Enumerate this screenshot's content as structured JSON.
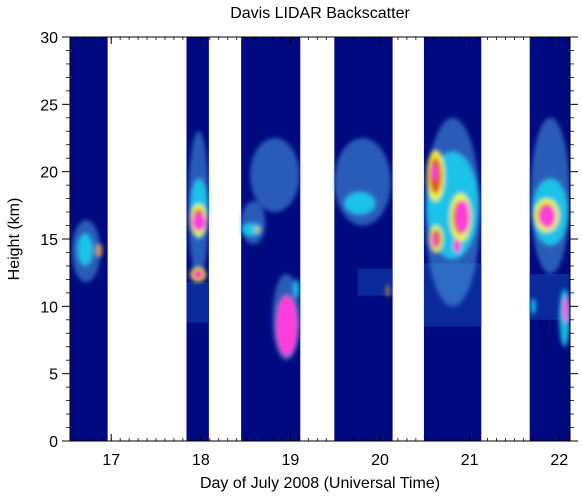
{
  "chart_data": {
    "type": "heatmap",
    "title": "Davis LIDAR Backscatter",
    "xlabel": "Day of July 2008 (Universal Time)",
    "ylabel": "Height (km)",
    "xlim": [
      16.54,
      22.12
    ],
    "ylim": [
      0,
      30
    ],
    "x_ticks": [
      "17",
      "18",
      "19",
      "20",
      "21",
      "22"
    ],
    "x_tick_values": [
      17,
      18,
      19,
      20,
      21,
      22
    ],
    "y_ticks": [
      "0",
      "5",
      "10",
      "15",
      "20",
      "25",
      "30"
    ],
    "y_tick_values": [
      0,
      5,
      10,
      15,
      20,
      25,
      30
    ],
    "grid": false,
    "colors": {
      "background": "#000a80",
      "lower_layer": "#0a2a9c",
      "cyan": "#19d4f0",
      "light_blue": "#4aa0e8",
      "yellow": "#ffff22",
      "red": "#e21a2a",
      "magenta": "#ff3cdc",
      "no_data": "#ffffff"
    },
    "observation_intervals": [
      {
        "start": 16.54,
        "end": 16.96
      },
      {
        "start": 17.84,
        "end": 18.09
      },
      {
        "start": 18.45,
        "end": 19.11
      },
      {
        "start": 19.49,
        "end": 20.14
      },
      {
        "start": 20.49,
        "end": 21.13
      },
      {
        "start": 21.67,
        "end": 22.12
      }
    ],
    "features": [
      {
        "kind": "cloud",
        "level": "light",
        "x": [
          16.56,
          16.88
        ],
        "y": [
          11.8,
          16.4
        ]
      },
      {
        "kind": "cloud",
        "level": "medium",
        "x": [
          16.62,
          16.8
        ],
        "y": [
          13.0,
          15.4
        ]
      },
      {
        "kind": "cloud",
        "level": "high",
        "x": [
          16.83,
          16.9
        ],
        "y": [
          13.7,
          14.6
        ]
      },
      {
        "kind": "cloud",
        "level": "light",
        "x": [
          17.86,
          18.09
        ],
        "y": [
          12.0,
          23.0
        ]
      },
      {
        "kind": "cloud",
        "level": "medium",
        "x": [
          17.88,
          18.08
        ],
        "y": [
          15.0,
          19.5
        ]
      },
      {
        "kind": "cloud",
        "level": "high",
        "x": [
          17.88,
          18.07
        ],
        "y": [
          15.2,
          17.6
        ]
      },
      {
        "kind": "cloud",
        "level": "peak",
        "x": [
          17.9,
          18.06
        ],
        "y": [
          15.6,
          16.9
        ]
      },
      {
        "kind": "cloud",
        "level": "high",
        "x": [
          17.88,
          18.06
        ],
        "y": [
          11.8,
          12.9
        ]
      },
      {
        "kind": "cloud",
        "level": "peak",
        "x": [
          17.92,
          18.02
        ],
        "y": [
          12.1,
          12.5
        ]
      },
      {
        "kind": "layer",
        "level": "lower",
        "x": [
          17.84,
          18.09
        ],
        "y": [
          8.8,
          11.8
        ]
      },
      {
        "kind": "cloud",
        "level": "light",
        "x": [
          18.45,
          18.72
        ],
        "y": [
          14.6,
          17.8
        ]
      },
      {
        "kind": "cloud",
        "level": "medium",
        "x": [
          18.45,
          18.68
        ],
        "y": [
          15.2,
          16.2
        ]
      },
      {
        "kind": "cloud",
        "level": "high",
        "x": [
          18.6,
          18.66
        ],
        "y": [
          15.5,
          15.9
        ]
      },
      {
        "kind": "cloud",
        "level": "light",
        "x": [
          18.55,
          19.1
        ],
        "y": [
          17.0,
          22.5
        ]
      },
      {
        "kind": "cloud",
        "level": "light",
        "x": [
          18.8,
          19.11
        ],
        "y": [
          6.0,
          12.4
        ]
      },
      {
        "kind": "cloud",
        "level": "peak",
        "x": [
          18.84,
          19.08
        ],
        "y": [
          6.3,
          10.8
        ]
      },
      {
        "kind": "cloud",
        "level": "medium",
        "x": [
          19.03,
          19.1
        ],
        "y": [
          10.6,
          12.0
        ]
      },
      {
        "kind": "cloud",
        "level": "light",
        "x": [
          19.49,
          20.12
        ],
        "y": [
          16.0,
          22.5
        ]
      },
      {
        "kind": "cloud",
        "level": "medium",
        "x": [
          19.6,
          19.95
        ],
        "y": [
          16.8,
          18.5
        ]
      },
      {
        "kind": "layer",
        "level": "lower",
        "x": [
          19.75,
          20.14
        ],
        "y": [
          10.8,
          12.8
        ]
      },
      {
        "kind": "cloud",
        "level": "high",
        "x": [
          20.07,
          20.1
        ],
        "y": [
          10.7,
          11.6
        ]
      },
      {
        "kind": "cloud",
        "level": "light",
        "x": [
          20.5,
          21.12
        ],
        "y": [
          10.0,
          24.0
        ]
      },
      {
        "kind": "cloud",
        "level": "medium",
        "x": [
          20.52,
          21.1
        ],
        "y": [
          13.5,
          21.5
        ]
      },
      {
        "kind": "cloud",
        "level": "high",
        "x": [
          20.52,
          20.72
        ],
        "y": [
          17.8,
          21.6
        ]
      },
      {
        "kind": "cloud",
        "level": "peak",
        "x": [
          20.58,
          20.64
        ],
        "y": [
          19.3,
          20.6
        ]
      },
      {
        "kind": "cloud",
        "level": "high",
        "x": [
          20.55,
          20.7
        ],
        "y": [
          14.0,
          16.0
        ]
      },
      {
        "kind": "cloud",
        "level": "peak",
        "x": [
          20.58,
          20.63
        ],
        "y": [
          14.4,
          15.4
        ]
      },
      {
        "kind": "cloud",
        "level": "high",
        "x": [
          20.78,
          21.02
        ],
        "y": [
          14.8,
          18.4
        ]
      },
      {
        "kind": "cloud",
        "level": "peak",
        "x": [
          20.85,
          21.0
        ],
        "y": [
          15.4,
          17.9
        ]
      },
      {
        "kind": "cloud",
        "level": "peak",
        "x": [
          20.82,
          20.9
        ],
        "y": [
          14.0,
          15.0
        ]
      },
      {
        "kind": "layer",
        "level": "lower",
        "x": [
          20.49,
          21.13
        ],
        "y": [
          8.5,
          13.2
        ]
      },
      {
        "kind": "cloud",
        "level": "light",
        "x": [
          21.68,
          22.12
        ],
        "y": [
          12.4,
          24.0
        ]
      },
      {
        "kind": "cloud",
        "level": "medium",
        "x": [
          21.7,
          22.1
        ],
        "y": [
          14.5,
          19.5
        ]
      },
      {
        "kind": "cloud",
        "level": "high",
        "x": [
          21.72,
          22.0
        ],
        "y": [
          15.5,
          18.0
        ]
      },
      {
        "kind": "cloud",
        "level": "peak",
        "x": [
          21.78,
          21.96
        ],
        "y": [
          15.8,
          17.5
        ]
      },
      {
        "kind": "cloud",
        "level": "medium",
        "x": [
          21.68,
          21.74
        ],
        "y": [
          9.4,
          10.6
        ]
      },
      {
        "kind": "cloud",
        "level": "medium",
        "x": [
          22.0,
          22.12
        ],
        "y": [
          7.0,
          11.3
        ]
      },
      {
        "kind": "cloud",
        "level": "peak",
        "x": [
          22.04,
          22.1
        ],
        "y": [
          8.8,
          10.7
        ]
      },
      {
        "kind": "layer",
        "level": "lower",
        "x": [
          21.67,
          22.12
        ],
        "y": [
          9.0,
          12.4
        ]
      }
    ]
  }
}
